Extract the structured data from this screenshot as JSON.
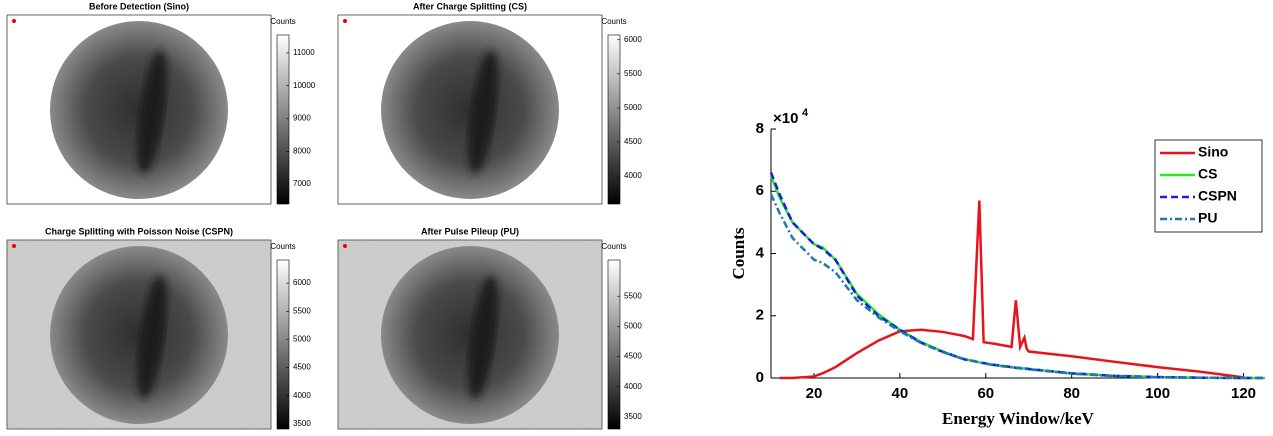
{
  "panels": [
    {
      "title": "Before Detection (Sino)",
      "colorbar_label": "Counts",
      "clim": [
        6390,
        11550
      ],
      "cticks": [
        7000,
        8000,
        9000,
        10000,
        11000
      ]
    },
    {
      "title": "After Charge Splitting (CS)",
      "colorbar_label": "Counts",
      "clim": [
        3590,
        6070
      ],
      "cticks": [
        4000,
        4500,
        5000,
        5500,
        6000
      ]
    },
    {
      "title": "Charge Splitting with Poisson Noise (CSPN)",
      "colorbar_label": "Counts",
      "clim": [
        3410,
        6410
      ],
      "cticks": [
        3500,
        4000,
        4500,
        5000,
        5500,
        6000
      ]
    },
    {
      "title": "After Pulse Pileup (PU)",
      "colorbar_label": "Counts",
      "clim": [
        3300,
        6100
      ],
      "cticks": [
        3500,
        4000,
        4500,
        5000,
        5500
      ]
    }
  ],
  "chart_data": {
    "type": "line",
    "xlabel": "Energy Window/keV",
    "ylabel": "Counts",
    "y_multiplier": {
      "base": "×10",
      "exponent": "4"
    },
    "x": [
      10,
      12,
      15,
      20,
      22,
      25,
      30,
      35,
      40,
      45,
      50,
      55,
      57,
      58.5,
      59.5,
      62,
      66,
      67,
      68,
      69,
      69.5,
      70,
      80,
      90,
      100,
      110,
      120,
      125
    ],
    "series": [
      {
        "name": "Sino",
        "color": "#e8141c",
        "style": "solid",
        "values": [
          null,
          0,
          0,
          0.05,
          0.15,
          0.35,
          0.8,
          1.2,
          1.5,
          1.55,
          1.48,
          1.35,
          1.25,
          5.7,
          1.15,
          1.1,
          1.0,
          2.5,
          1.0,
          1.3,
          0.95,
          0.85,
          0.7,
          0.52,
          0.35,
          0.2,
          0.02,
          null
        ]
      },
      {
        "name": "CS",
        "color": "#22ee22",
        "style": "solid",
        "values": [
          6.5,
          5.8,
          5.0,
          4.3,
          4.2,
          3.8,
          2.7,
          2.05,
          1.55,
          1.15,
          0.85,
          0.6,
          0.55,
          0.5,
          0.48,
          0.42,
          0.35,
          0.33,
          0.32,
          0.3,
          0.3,
          0.29,
          0.15,
          0.07,
          0.03,
          0.01,
          0,
          0
        ]
      },
      {
        "name": "CSPN",
        "color": "#1a1ae6",
        "style": "dashed",
        "values": [
          6.6,
          5.9,
          5.0,
          4.3,
          4.15,
          3.8,
          2.65,
          2.0,
          1.55,
          1.13,
          0.84,
          0.6,
          0.55,
          0.5,
          0.48,
          0.42,
          0.35,
          0.33,
          0.32,
          0.3,
          0.3,
          0.29,
          0.15,
          0.07,
          0.03,
          0.01,
          0,
          0
        ]
      },
      {
        "name": "PU",
        "color": "#1f77b4",
        "style": "dashdot",
        "values": [
          5.9,
          5.3,
          4.5,
          3.8,
          3.7,
          3.4,
          2.5,
          1.95,
          1.5,
          1.12,
          0.83,
          0.6,
          0.55,
          0.5,
          0.47,
          0.41,
          0.34,
          0.32,
          0.31,
          0.29,
          0.29,
          0.28,
          0.14,
          0.06,
          0.02,
          0.01,
          0,
          0
        ]
      }
    ],
    "xlim": [
      10,
      125
    ],
    "ylim": [
      0,
      8
    ],
    "xticks": [
      20,
      40,
      60,
      80,
      100,
      120
    ],
    "yticks": [
      0,
      2,
      4,
      6,
      8
    ],
    "grid": false,
    "legend": "upper right"
  }
}
